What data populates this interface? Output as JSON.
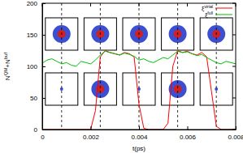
{
  "chart_data": {
    "type": "line",
    "x_label": "t(ps)",
    "y_label": "NQM+Nbuf",
    "x": [
      0,
      0.0002,
      0.0004,
      0.0006,
      0.0008,
      0.001,
      0.0012,
      0.0014,
      0.0016,
      0.0018,
      0.002,
      0.0022,
      0.0024,
      0.0026,
      0.0028,
      0.003,
      0.0032,
      0.0034,
      0.0036,
      0.0038,
      0.004,
      0.0042,
      0.0044,
      0.0046,
      0.0048,
      0.005,
      0.0052,
      0.0054,
      0.0056,
      0.0058,
      0.006,
      0.0062,
      0.0064,
      0.0066,
      0.0068,
      0.007,
      0.0072,
      0.0074,
      0.0076,
      0.0078,
      0.008
    ],
    "series": [
      {
        "name": "ξvirial",
        "color": "#ff0000",
        "values": [
          0,
          0,
          0,
          0,
          0,
          0,
          0,
          0,
          0,
          0,
          0,
          30,
          115,
          125,
          122,
          120,
          118,
          122,
          120,
          115,
          40,
          2,
          0,
          0,
          0,
          0,
          10,
          100,
          125,
          122,
          124,
          120,
          118,
          122,
          115,
          60,
          5,
          0,
          0,
          0,
          0
        ]
      },
      {
        "name": "ξfull",
        "color": "#00c000",
        "values": [
          105,
          110,
          112,
          108,
          104,
          106,
          102,
          100,
          108,
          106,
          104,
          110,
          118,
          124,
          122,
          120,
          118,
          121,
          119,
          116,
          110,
          112,
          108,
          106,
          110,
          114,
          112,
          118,
          124,
          122,
          123,
          120,
          117,
          119,
          114,
          110,
          106,
          104,
          108,
          106,
          104
        ]
      }
    ],
    "vlines": [
      0.0008,
      0.0024,
      0.004,
      0.0056,
      0.0072
    ],
    "xlim": [
      0,
      0.008
    ],
    "xticks": [
      0,
      0.002,
      0.004,
      0.006,
      0.008
    ],
    "ylim": [
      0,
      200
    ],
    "yticks": [
      0,
      50,
      100,
      150,
      200
    ],
    "legend": "top-right"
  }
}
